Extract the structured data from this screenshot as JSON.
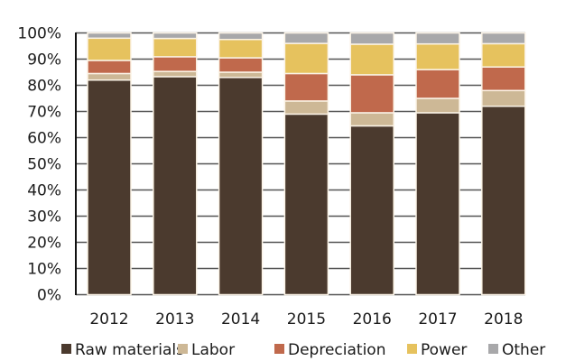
{
  "chart_data": {
    "type": "bar",
    "stacked": true,
    "title": "",
    "xlabel": "",
    "ylabel": "",
    "ylim": [
      0,
      100
    ],
    "y_ticks": [
      "0%",
      "10%",
      "20%",
      "30%",
      "40%",
      "50%",
      "60%",
      "70%",
      "80%",
      "90%",
      "100%"
    ],
    "grid": true,
    "legend_position": "bottom",
    "categories": [
      "2012",
      "2013",
      "2014",
      "2015",
      "2016",
      "2017",
      "2018"
    ],
    "series": [
      {
        "name": "Raw materials",
        "color": "#4b3a2e",
        "values": [
          82,
          83.3,
          83,
          69,
          64.5,
          69.5,
          72
        ]
      },
      {
        "name": "Labor",
        "color": "#cdb896",
        "values": [
          2.5,
          2,
          2,
          5,
          5,
          5.5,
          6
        ]
      },
      {
        "name": "Depreciation",
        "color": "#c0694c",
        "values": [
          5,
          5.6,
          5.5,
          10.5,
          14.5,
          11,
          9
        ]
      },
      {
        "name": "Power",
        "color": "#e6c25e",
        "values": [
          8.5,
          7,
          7,
          11.5,
          11.7,
          9.8,
          8.9
        ]
      },
      {
        "name": "Other",
        "color": "#a8a8aa",
        "values": [
          2,
          2.1,
          2.5,
          4,
          4.3,
          4.2,
          4.1
        ]
      }
    ]
  }
}
